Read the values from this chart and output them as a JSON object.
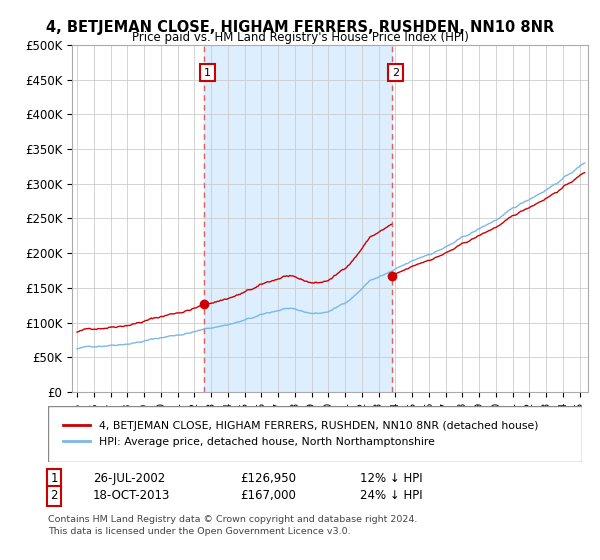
{
  "title": "4, BETJEMAN CLOSE, HIGHAM FERRERS, RUSHDEN, NN10 8NR",
  "subtitle": "Price paid vs. HM Land Registry's House Price Index (HPI)",
  "ylim": [
    0,
    500000
  ],
  "yticks": [
    0,
    50000,
    100000,
    150000,
    200000,
    250000,
    300000,
    350000,
    400000,
    450000,
    500000
  ],
  "ytick_labels": [
    "£0",
    "£50K",
    "£100K",
    "£150K",
    "£200K",
    "£250K",
    "£300K",
    "£350K",
    "£400K",
    "£450K",
    "£500K"
  ],
  "sale1_date_num": 2002.57,
  "sale1_price": 126950,
  "sale1_label": "1",
  "sale1_date_str": "26-JUL-2002",
  "sale1_price_str": "£126,950",
  "sale1_hpi_str": "12% ↓ HPI",
  "sale2_date_num": 2013.8,
  "sale2_price": 167000,
  "sale2_label": "2",
  "sale2_date_str": "18-OCT-2013",
  "sale2_price_str": "£167,000",
  "sale2_hpi_str": "24% ↓ HPI",
  "hpi_color": "#7ab8e8",
  "price_color": "#cc0000",
  "vline_color": "#e06060",
  "shade_color": "#ddeeff",
  "legend_label1": "4, BETJEMAN CLOSE, HIGHAM FERRERS, RUSHDEN, NN10 8NR (detached house)",
  "legend_label2": "HPI: Average price, detached house, North Northamptonshire",
  "footer1": "Contains HM Land Registry data © Crown copyright and database right 2024.",
  "footer2": "This data is licensed under the Open Government Licence v3.0.",
  "bg_color": "#ffffff",
  "plot_bg_color": "#ffffff",
  "grid_color": "#cccccc"
}
